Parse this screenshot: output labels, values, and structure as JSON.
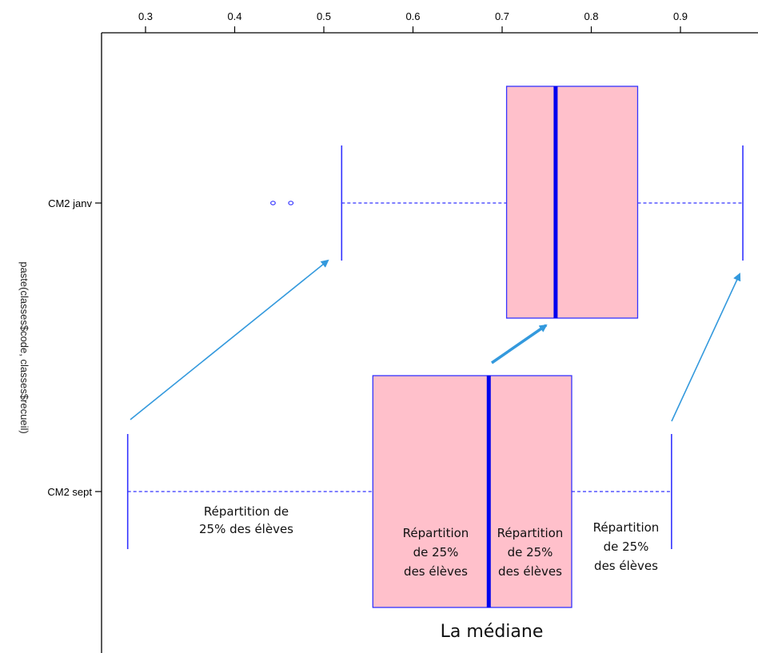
{
  "chart_data": {
    "type": "boxplot",
    "orientation": "horizontal",
    "xlim": [
      0.27,
      0.97
    ],
    "ticks": [
      0.3,
      0.4,
      0.5,
      0.6,
      0.7,
      0.8,
      0.9
    ],
    "tick_labels": [
      "0.3",
      "0.4",
      "0.5",
      "0.6",
      "0.7",
      "0.8",
      "0.9"
    ],
    "ylabel": "paste(classes$code, classes$recueil)",
    "categories": [
      {
        "name": "CM2 janv",
        "whisker_low": 0.52,
        "q1": 0.705,
        "median": 0.76,
        "q3": 0.852,
        "whisker_high": 0.97,
        "outliers": [
          0.443,
          0.463
        ]
      },
      {
        "name": "CM2 sept",
        "whisker_low": 0.28,
        "q1": 0.555,
        "median": 0.685,
        "q3": 0.778,
        "whisker_high": 0.89,
        "outliers": []
      }
    ],
    "box_fill": "#ffc0cb",
    "box_stroke": "#3333ff",
    "median_color": "#0000ee",
    "arrow_color": "#3399dd",
    "annotations": [
      {
        "lines": [
          "Répartition de",
          "25% des élèves"
        ]
      },
      {
        "lines": [
          "Répartition",
          "de 25%",
          "des élèves"
        ]
      },
      {
        "lines": [
          "Répartition",
          "de 25%",
          "des élèves"
        ]
      },
      {
        "lines": [
          "Répartition",
          "de 25%",
          "des élèves"
        ]
      },
      {
        "lines": [
          "La médiane"
        ]
      }
    ]
  }
}
